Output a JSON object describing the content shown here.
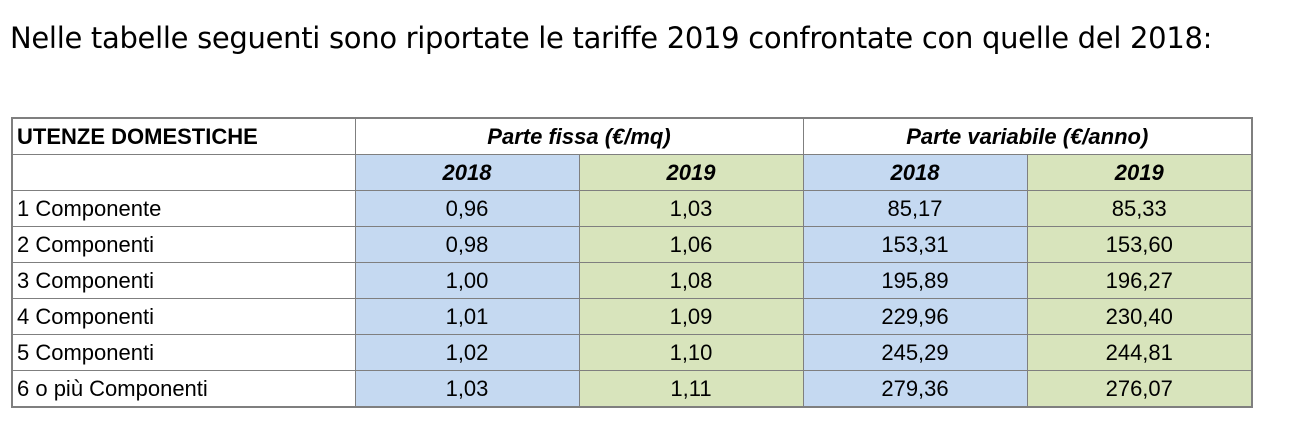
{
  "intro_text": "Nelle tabelle seguenti sono riportate le tariffe 2019 confrontate con quelle del 2018:",
  "table": {
    "header": {
      "category": "UTENZE DOMESTICHE",
      "group_fixed": "Parte fissa (€/mq)",
      "group_variable": "Parte variabile (€/anno)",
      "years": [
        "2018",
        "2019",
        "2018",
        "2019"
      ]
    },
    "rows": [
      {
        "label": "1 Componente",
        "values": [
          "0,96",
          "1,03",
          "85,17",
          "85,33"
        ]
      },
      {
        "label": "2 Componenti",
        "values": [
          "0,98",
          "1,06",
          "153,31",
          "153,60"
        ]
      },
      {
        "label": "3 Componenti",
        "values": [
          "1,00",
          "1,08",
          "195,89",
          "196,27"
        ]
      },
      {
        "label": "4 Componenti",
        "values": [
          "1,01",
          "1,09",
          "229,96",
          "230,40"
        ]
      },
      {
        "label": "5 Componenti",
        "values": [
          "1,02",
          "1,10",
          "245,29",
          "244,81"
        ]
      },
      {
        "label": "6 o più Componenti",
        "values": [
          "1,03",
          "1,11",
          "279,36",
          "276,07"
        ]
      }
    ]
  },
  "colors": {
    "col_2018": "#c5d9f1",
    "col_2019": "#d8e4bc",
    "border": "#7f7f7f"
  }
}
